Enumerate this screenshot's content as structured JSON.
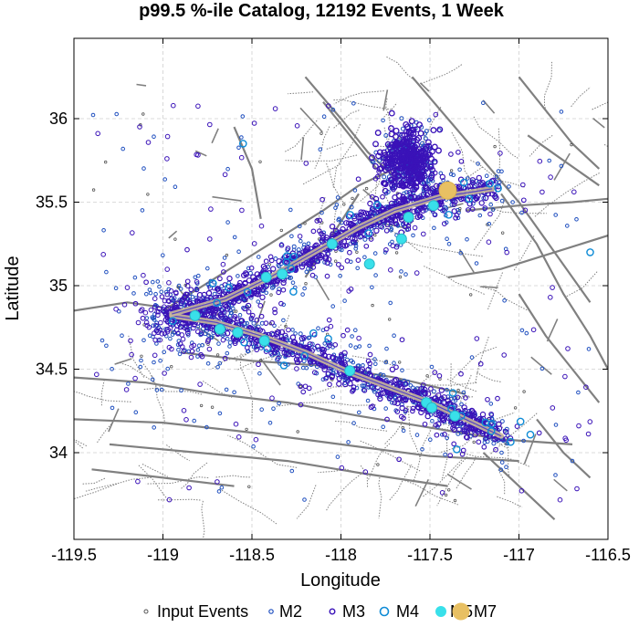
{
  "chart_data": {
    "type": "scatter",
    "title": "p99.5 %-ile Catalog, 12192 Events, 1 Week",
    "xlabel": "Longitude",
    "ylabel": "Latitude",
    "xlim": [
      -119.5,
      -116.5
    ],
    "ylim": [
      33.55,
      36.25
    ],
    "xticks": [
      -119.5,
      -119,
      -118.5,
      -118,
      -117.5,
      -117,
      -116.5
    ],
    "xtick_labels": [
      "-119.5",
      "-119",
      "-118.5",
      "-118",
      "-117.5",
      "-117",
      "-116.5"
    ],
    "yticks": [
      34,
      34.5,
      35,
      35.5,
      36
    ],
    "ytick_labels": [
      "34",
      "34.5",
      "35",
      "35.5",
      "36"
    ],
    "grid": true,
    "legend_position": "bottom",
    "legend": [
      {
        "label": "Input Events",
        "key": "input"
      },
      {
        "label": "M2",
        "key": "m2"
      },
      {
        "label": "M3",
        "key": "m3"
      },
      {
        "label": "M4",
        "key": "m4"
      },
      {
        "label": "M5",
        "key": "m5"
      },
      {
        "label": "M7",
        "key": "m7"
      }
    ],
    "series": [
      {
        "name": "M5",
        "key": "m5",
        "points": [
          [
            -118.82,
            34.82
          ],
          [
            -118.68,
            34.74
          ],
          [
            -118.58,
            34.72
          ],
          [
            -118.43,
            34.67
          ],
          [
            -118.42,
            35.05
          ],
          [
            -118.33,
            35.07
          ],
          [
            -118.05,
            35.25
          ],
          [
            -117.95,
            34.49
          ],
          [
            -117.84,
            35.13
          ],
          [
            -117.66,
            35.28
          ],
          [
            -117.52,
            34.3
          ],
          [
            -117.49,
            34.27
          ],
          [
            -117.48,
            35.48
          ],
          [
            -117.36,
            34.22
          ],
          [
            -117.62,
            35.41
          ]
        ]
      },
      {
        "name": "M7",
        "key": "m7",
        "points": [
          [
            -117.4,
            35.57
          ]
        ]
      }
    ],
    "fault_trace": [
      [
        -118.95,
        34.82
      ],
      [
        -118.7,
        34.78
      ],
      [
        -118.45,
        34.7
      ],
      [
        -118.2,
        34.6
      ],
      [
        -117.95,
        34.48
      ],
      [
        -117.7,
        34.38
      ],
      [
        -117.5,
        34.3
      ],
      [
        -117.3,
        34.2
      ],
      [
        -117.1,
        34.1
      ]
    ],
    "fault_trace_2": [
      [
        -118.95,
        34.83
      ],
      [
        -118.65,
        34.92
      ],
      [
        -118.4,
        35.05
      ],
      [
        -118.15,
        35.2
      ],
      [
        -117.9,
        35.35
      ],
      [
        -117.7,
        35.45
      ],
      [
        -117.45,
        35.53
      ],
      [
        -117.15,
        35.58
      ]
    ],
    "colors": {
      "input": "#555555",
      "m2": "#1f4fbf",
      "m3": "#3a12b8",
      "m4": "#0e8bd6",
      "m5": "#39e0ea",
      "m7": "#e8c063",
      "fault": "#808080",
      "trace": "#c9b89a"
    }
  }
}
